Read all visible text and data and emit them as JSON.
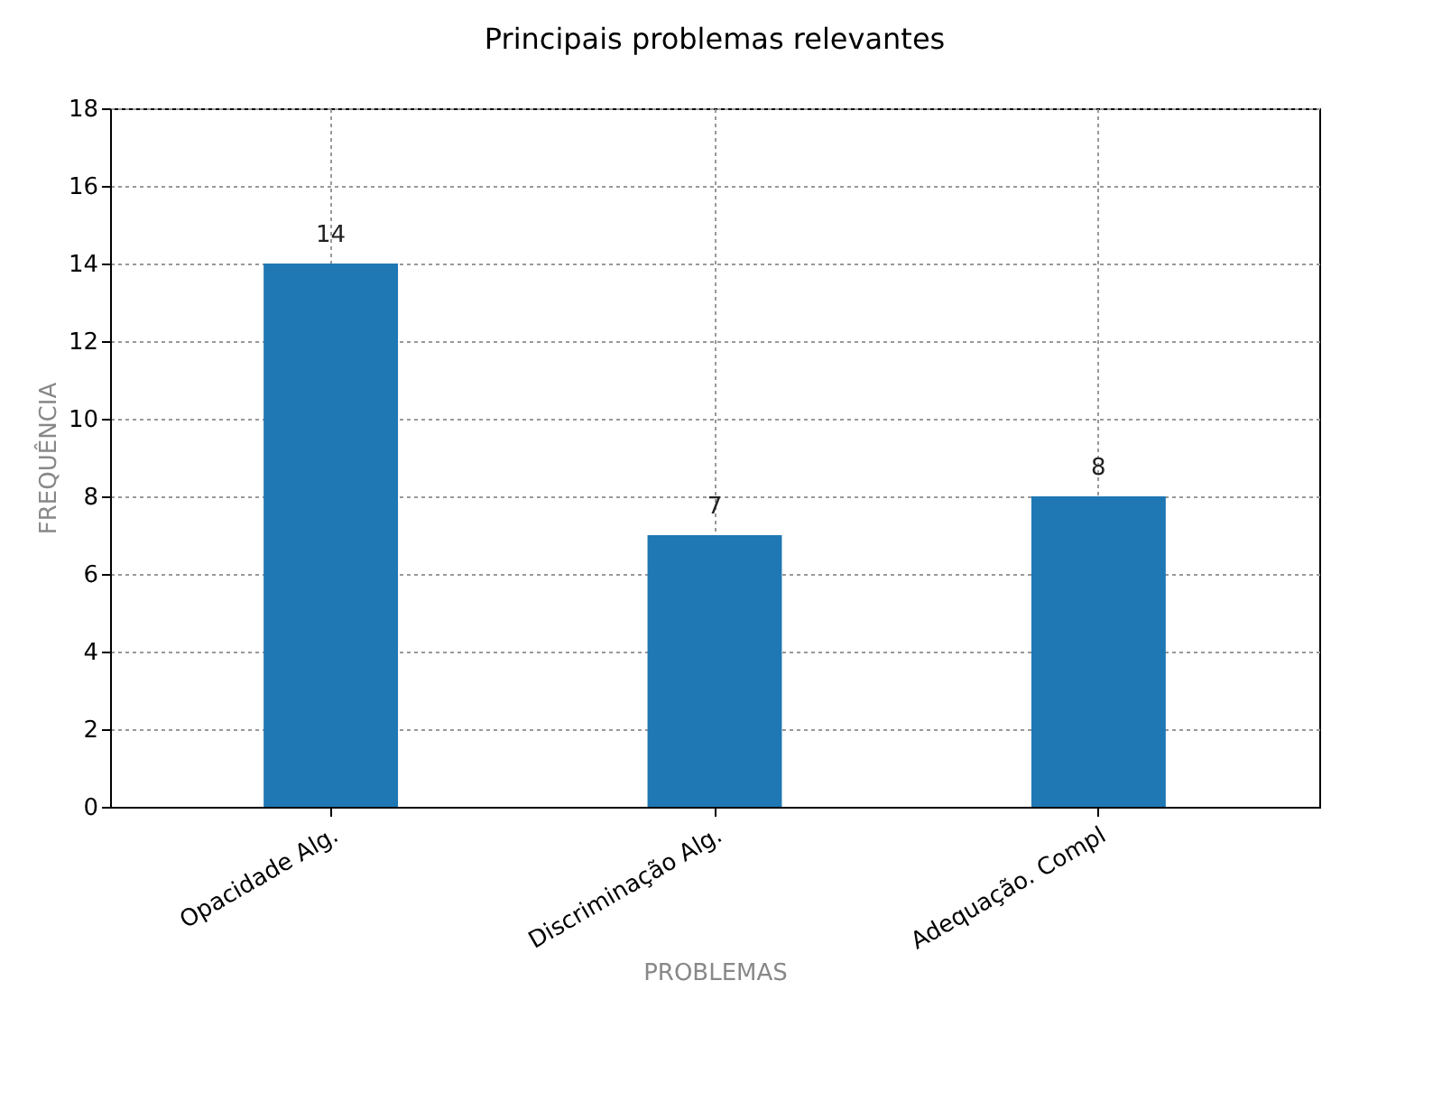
{
  "chart_data": {
    "type": "bar",
    "title": "Principais problemas relevantes",
    "xlabel": "PROBLEMAS",
    "ylabel": "FREQUÊNCIA",
    "categories": [
      "Opacidade Alg.",
      "Discriminação Alg.",
      "Adequação. Compl"
    ],
    "values": [
      14,
      7,
      8
    ],
    "color": "#1f77b4",
    "ylim": [
      0,
      18
    ],
    "yticks": [
      0,
      2,
      4,
      6,
      8,
      10,
      12,
      14,
      16,
      18
    ],
    "grid": true,
    "data_labels": true
  }
}
